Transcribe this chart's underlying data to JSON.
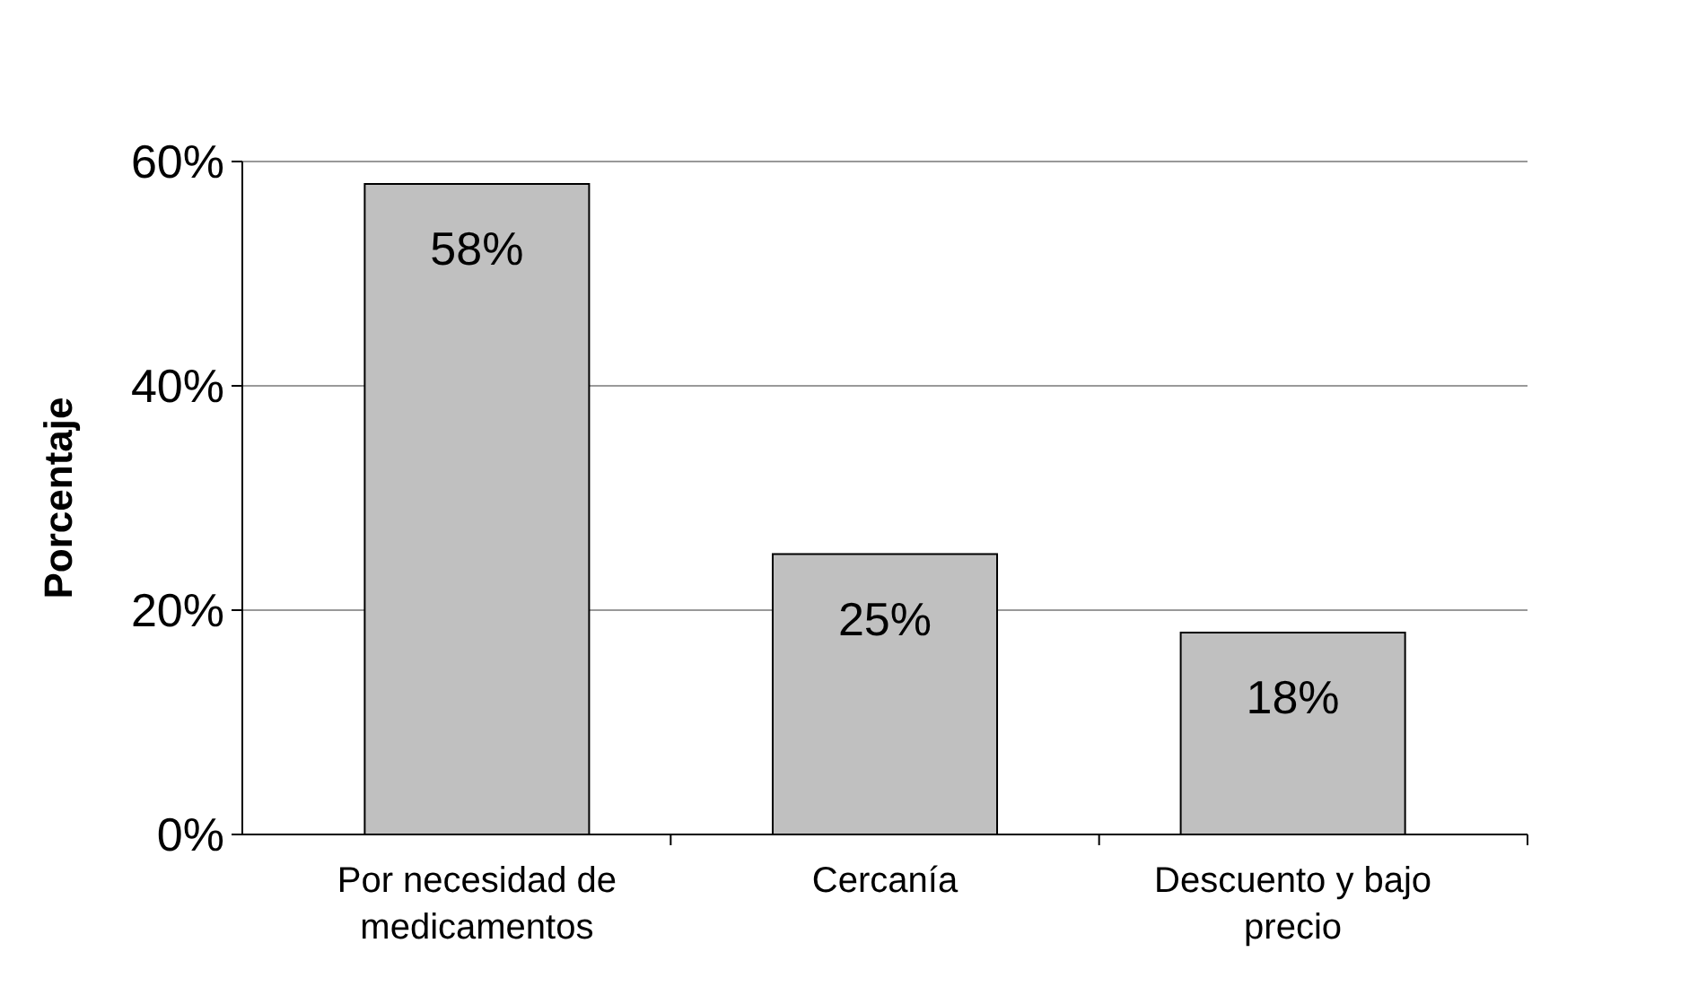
{
  "chart_data": {
    "type": "bar",
    "ylabel": "Porcentaje",
    "categories": [
      "Por necesidad de medicamentos",
      "Cercanía",
      "Descuento y bajo precio"
    ],
    "values": [
      58,
      25,
      18
    ],
    "color": "#c0c0c0",
    "value_labels": [
      "58%",
      "25%",
      "18%"
    ],
    "ylim": [
      0,
      60
    ],
    "yticks": [
      {
        "value": 0,
        "label": "0%"
      },
      {
        "value": 20,
        "label": "20%"
      },
      {
        "value": 40,
        "label": "40%"
      },
      {
        "value": 60,
        "label": "60%"
      }
    ],
    "grid": "y"
  }
}
